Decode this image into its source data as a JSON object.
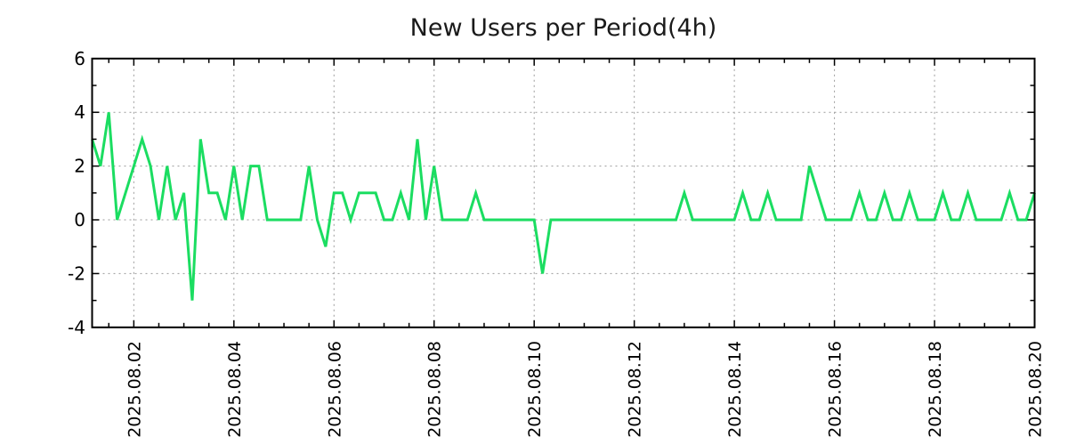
{
  "page": {
    "background": "#ffffff"
  },
  "chart": {
    "title": "New Users per Period(4h)",
    "colors": {
      "line": "#1bdd61",
      "grid": "#9a9a9a",
      "axis": "#000000",
      "title_text": "#1a1a1a",
      "tick_text": "#000000"
    }
  },
  "chart_data": {
    "type": "line",
    "title": "New Users per Period(4h)",
    "period_label": "4h",
    "ylim": [
      -4,
      6
    ],
    "y_ticks": [
      -4,
      -2,
      0,
      2,
      4,
      6
    ],
    "x_tick_labels": [
      "2025.08.02",
      "2025.08.04",
      "2025.08.06",
      "2025.08.08",
      "2025.08.10",
      "2025.08.12",
      "2025.08.14",
      "2025.08.16",
      "2025.08.18",
      "2025.08.20"
    ],
    "x_major_indices": [
      5,
      17,
      29,
      41,
      53,
      65,
      77,
      89,
      101,
      113
    ],
    "x_minor_start_index": 2,
    "x_minor_step": 3,
    "grid": true,
    "legend": null,
    "values": [
      3,
      2,
      4,
      0,
      1,
      2,
      3,
      2,
      0,
      2,
      0,
      1,
      -3,
      3,
      1,
      1,
      0,
      2,
      0,
      2,
      2,
      0,
      0,
      0,
      0,
      0,
      2,
      0,
      -1,
      1,
      1,
      0,
      1,
      1,
      1,
      0,
      0,
      1,
      0,
      3,
      0,
      2,
      0,
      0,
      0,
      0,
      1,
      0,
      0,
      0,
      0,
      0,
      0,
      0,
      -2,
      0,
      0,
      0,
      0,
      0,
      0,
      0,
      0,
      0,
      0,
      0,
      0,
      0,
      0,
      0,
      0,
      1,
      0,
      0,
      0,
      0,
      0,
      0,
      1,
      0,
      0,
      1,
      0,
      0,
      0,
      0,
      2,
      1,
      0,
      0,
      0,
      0,
      1,
      0,
      0,
      1,
      0,
      0,
      1,
      0,
      0,
      0,
      1,
      0,
      0,
      1,
      0,
      0,
      0,
      0,
      1,
      0,
      0,
      1
    ]
  }
}
